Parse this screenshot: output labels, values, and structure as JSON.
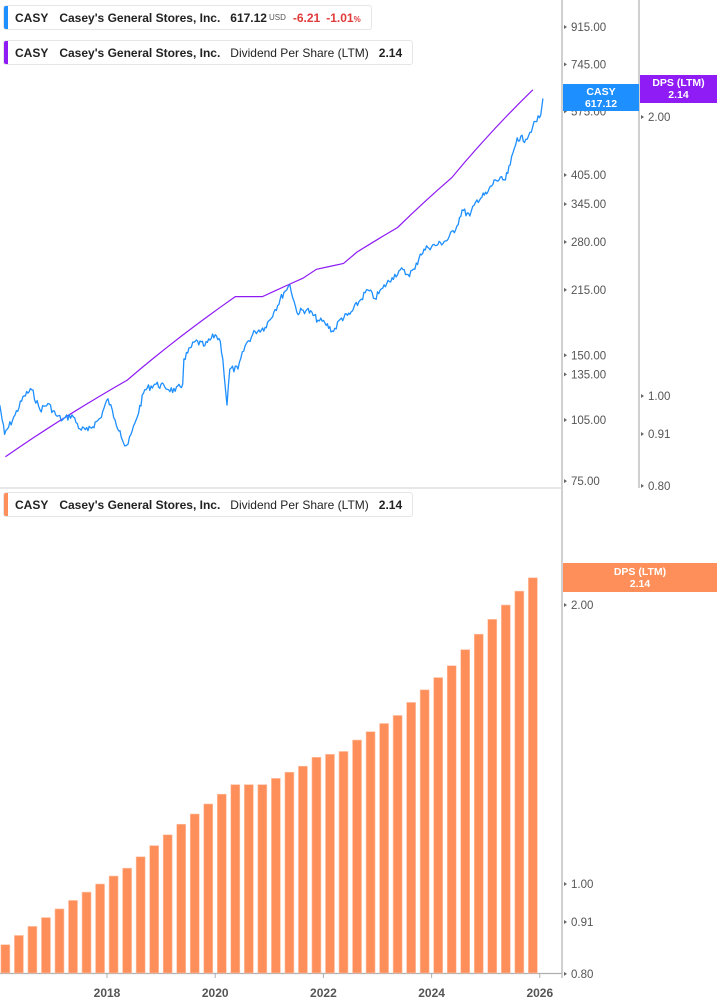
{
  "legends": {
    "price": {
      "ticker": "CASY",
      "name": "Casey's General Stores, Inc.",
      "value": "617.12",
      "currency": "USD",
      "change": "-6.21",
      "change_pct": "-1.01",
      "pct_sign": "%"
    },
    "dps_top": {
      "ticker": "CASY",
      "name": "Casey's General Stores, Inc.",
      "indicator": "Dividend Per Share (LTM)",
      "value": "2.14"
    },
    "dps_bottom": {
      "ticker": "CASY",
      "name": "Casey's General Stores, Inc.",
      "indicator": "Dividend Per Share (LTM)",
      "value": "2.14"
    }
  },
  "tags": {
    "price": {
      "label": "CASY",
      "value": "617.12"
    },
    "dps_top": {
      "label": "DPS (LTM)",
      "value": "2.14"
    },
    "dps_bottom": {
      "label": "DPS (LTM)",
      "value": "2.14"
    }
  },
  "colors": {
    "price": "#1E8FFF",
    "dps_line": "#8F1BF5",
    "dps_bar": "#FF8F5A",
    "axis": "#b0b0b0",
    "negative": "#e03a3a"
  },
  "chart_data": [
    {
      "type": "line",
      "panel": "top",
      "scale": "log",
      "price_axis_ticks": [
        "915.00",
        "745.00",
        "575.00",
        "405.00",
        "345.00",
        "280.00",
        "215.00",
        "150.00",
        "135.00",
        "105.00",
        "75.00"
      ],
      "dps_axis_ticks": [
        "2.00",
        "1.00",
        "0.91",
        "0.80"
      ],
      "series": [
        {
          "name": "CASY",
          "axis": "price",
          "points": [
            [
              "2016-01-08",
              114
            ],
            [
              "2016-02-10",
              97
            ],
            [
              "2016-04-20",
              108
            ],
            [
              "2016-06-20",
              120
            ],
            [
              "2016-08-10",
              124
            ],
            [
              "2016-10-05",
              111
            ],
            [
              "2016-11-28",
              115
            ],
            [
              "2017-01-20",
              108
            ],
            [
              "2017-03-05",
              105
            ],
            [
              "2017-05-08",
              108
            ],
            [
              "2017-07-01",
              100
            ],
            [
              "2017-08-25",
              99
            ],
            [
              "2017-11-15",
              106
            ],
            [
              "2018-01-08",
              118
            ],
            [
              "2018-02-25",
              105
            ],
            [
              "2018-03-28",
              99
            ],
            [
              "2018-04-30",
              91
            ],
            [
              "2018-05-22",
              92
            ],
            [
              "2018-07-15",
              105
            ],
            [
              "2018-09-12",
              124
            ],
            [
              "2018-11-20",
              128
            ],
            [
              "2019-01-25",
              126
            ],
            [
              "2019-04-05",
              123
            ],
            [
              "2019-05-25",
              128
            ],
            [
              "2019-06-03",
              147
            ],
            [
              "2019-08-18",
              162
            ],
            [
              "2019-10-22",
              158
            ],
            [
              "2020-01-01",
              168
            ],
            [
              "2020-02-05",
              162
            ],
            [
              "2020-02-22",
              147
            ],
            [
              "2020-03-20",
              114
            ],
            [
              "2020-04-08",
              139
            ],
            [
              "2020-06-03",
              139
            ],
            [
              "2020-07-20",
              158
            ],
            [
              "2020-09-27",
              171
            ],
            [
              "2020-12-03",
              175
            ],
            [
              "2021-02-10",
              193
            ],
            [
              "2021-04-08",
              212
            ],
            [
              "2021-05-18",
              221
            ],
            [
              "2021-07-05",
              190
            ],
            [
              "2021-09-12",
              193
            ],
            [
              "2021-11-25",
              182
            ],
            [
              "2022-01-12",
              179
            ],
            [
              "2022-03-08",
              171
            ],
            [
              "2022-04-24",
              183
            ],
            [
              "2022-06-28",
              188
            ],
            [
              "2022-09-05",
              203
            ],
            [
              "2022-10-27",
              215
            ],
            [
              "2022-12-14",
              205
            ],
            [
              "2023-02-06",
              217
            ],
            [
              "2023-04-08",
              230
            ],
            [
              "2023-06-03",
              240
            ],
            [
              "2023-07-25",
              234
            ],
            [
              "2023-09-10",
              241
            ],
            [
              "2023-10-16",
              262
            ],
            [
              "2023-12-05",
              272
            ],
            [
              "2024-02-13",
              276
            ],
            [
              "2024-04-20",
              284
            ],
            [
              "2024-06-20",
              306
            ],
            [
              "2024-07-24",
              334
            ],
            [
              "2024-09-16",
              323
            ],
            [
              "2024-11-03",
              353
            ],
            [
              "2025-01-08",
              365
            ],
            [
              "2025-03-05",
              394
            ],
            [
              "2025-05-12",
              394
            ],
            [
              "2025-06-14",
              428
            ],
            [
              "2025-07-31",
              497
            ],
            [
              "2025-09-28",
              493
            ],
            [
              "2025-11-14",
              528
            ],
            [
              "2026-01-08",
              564
            ],
            [
              "2026-01-22",
              617.12
            ]
          ]
        },
        {
          "name": "DPS (LTM)",
          "axis": "dps",
          "values_from": "dps_bars"
        }
      ]
    },
    {
      "type": "bar",
      "panel": "bottom",
      "scale": "log",
      "y_ticks": [
        "2.00",
        "1.00",
        "0.91",
        "0.80"
      ],
      "x_ticks": [
        "2018",
        "2020",
        "2022",
        "2024",
        "2026"
      ],
      "ylim": [
        0.8,
        2.3
      ],
      "categories": [
        "2016-02",
        "2016-05",
        "2016-08",
        "2016-11",
        "2017-02",
        "2017-05",
        "2017-08",
        "2017-11",
        "2018-02",
        "2018-05",
        "2018-08",
        "2018-11",
        "2019-02",
        "2019-05",
        "2019-08",
        "2019-11",
        "2020-02",
        "2020-05",
        "2020-08",
        "2020-11",
        "2021-02",
        "2021-05",
        "2021-08",
        "2021-11",
        "2022-02",
        "2022-05",
        "2022-08",
        "2022-11",
        "2023-02",
        "2023-05",
        "2023-08",
        "2023-11",
        "2024-02",
        "2024-05",
        "2024-08",
        "2024-11",
        "2025-02",
        "2025-05",
        "2025-08",
        "2025-11"
      ],
      "values": [
        0.86,
        0.88,
        0.9,
        0.92,
        0.94,
        0.96,
        0.98,
        1.0,
        1.02,
        1.04,
        1.07,
        1.1,
        1.13,
        1.16,
        1.19,
        1.22,
        1.25,
        1.28,
        1.28,
        1.28,
        1.3,
        1.32,
        1.34,
        1.37,
        1.38,
        1.39,
        1.43,
        1.46,
        1.49,
        1.52,
        1.57,
        1.62,
        1.67,
        1.72,
        1.79,
        1.86,
        1.93,
        2.0,
        2.07,
        2.14
      ]
    }
  ]
}
